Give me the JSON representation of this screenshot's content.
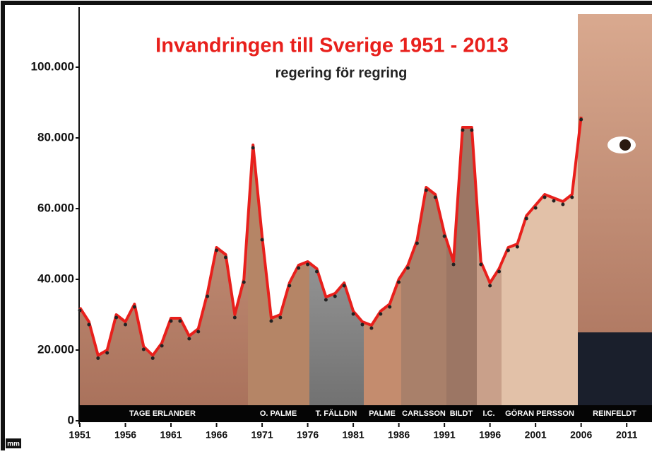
{
  "chart_data": {
    "type": "line",
    "title": "Invandringen till Sverige 1951 - 2013",
    "subtitle": "regering för regring",
    "x": [
      1951,
      1952,
      1953,
      1954,
      1955,
      1956,
      1957,
      1958,
      1959,
      1960,
      1961,
      1962,
      1963,
      1964,
      1965,
      1966,
      1967,
      1968,
      1969,
      1970,
      1971,
      1972,
      1973,
      1974,
      1975,
      1976,
      1977,
      1978,
      1979,
      1980,
      1981,
      1982,
      1983,
      1984,
      1985,
      1986,
      1987,
      1988,
      1989,
      1990,
      1991,
      1992,
      1993,
      1994,
      1995,
      1996,
      1997,
      1998,
      1999,
      2000,
      2001,
      2002,
      2003,
      2004,
      2005,
      2006
    ],
    "values": [
      32000,
      28000,
      18500,
      20000,
      30000,
      28000,
      33000,
      21000,
      18500,
      22000,
      29000,
      29000,
      24000,
      26000,
      36000,
      49000,
      47000,
      30000,
      40000,
      78000,
      52000,
      29000,
      30000,
      39000,
      44000,
      45000,
      43000,
      35000,
      36000,
      39000,
      31000,
      28000,
      27000,
      31000,
      33000,
      40000,
      44000,
      51000,
      66000,
      64000,
      53000,
      45000,
      83000,
      83000,
      45000,
      39000,
      43000,
      49000,
      50000,
      58000,
      61000,
      64000,
      63000,
      62000,
      64000,
      86000
    ],
    "color": "#e8201c",
    "xlim": [
      1951,
      2013
    ],
    "xticks": [
      1951,
      1956,
      1961,
      1966,
      1971,
      1976,
      1981,
      1986,
      1991,
      1996,
      2001,
      2006,
      2011
    ],
    "ylim": [
      0,
      116000
    ],
    "yticks": [
      0,
      {
        "value": 20000,
        "label": "20.000"
      },
      {
        "value": 40000,
        "label": "40.000"
      },
      {
        "value": 60000,
        "label": "60.000"
      },
      {
        "value": 80000,
        "label": "80.000"
      },
      {
        "value": 100000,
        "label": "100.000"
      }
    ],
    "governments": [
      "TAGE ERLANDER",
      "O. PALME",
      "T. FÄLLDIN",
      "PALME",
      "CARLSSON",
      "BILDT",
      "I.C.",
      "GÖRAN PERSSON",
      "REINFELDT"
    ],
    "logo": "mm"
  }
}
